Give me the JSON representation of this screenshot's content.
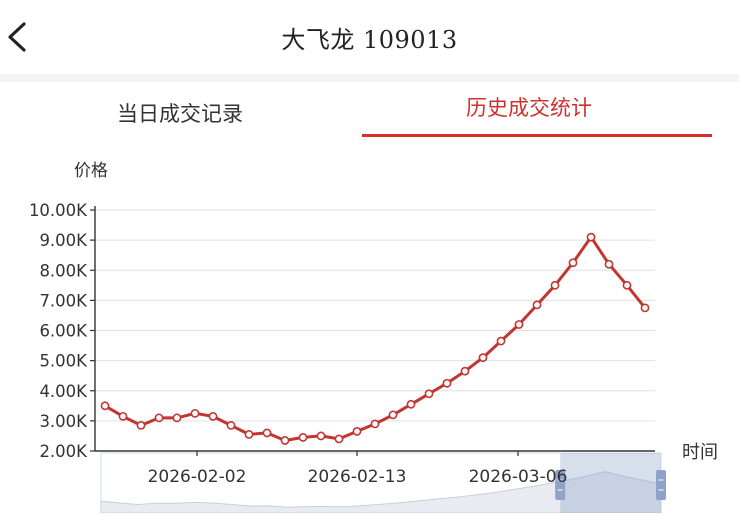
{
  "header": {
    "title_name": "大飞龙",
    "title_code": "109013"
  },
  "tabs": [
    {
      "label": "当日成交记录",
      "active": false
    },
    {
      "label": "历史成交统计",
      "active": true
    }
  ],
  "colors": {
    "accent": "#d0312d",
    "line": "#c23531",
    "grid": "#e0e0e0"
  },
  "chart_data": {
    "type": "line",
    "ylabel": "价格",
    "xlabel": "时间",
    "ylim": [
      2000,
      10000
    ],
    "y_ticks": [
      "2.00K",
      "3.00K",
      "4.00K",
      "5.00K",
      "6.00K",
      "7.00K",
      "8.00K",
      "9.00K",
      "10.00K"
    ],
    "x_ticks": [
      "2026-02-02",
      "2026-02-13",
      "2026-03-06"
    ],
    "legend": "none",
    "grid": true,
    "series": [
      {
        "values": [
          3500,
          3150,
          2850,
          3100,
          3100,
          3250,
          3150,
          2850,
          2550,
          2600,
          2350,
          2450,
          2500,
          2400,
          2650,
          2900,
          3200,
          3550,
          3900,
          4250,
          4650,
          5100,
          5650,
          6200,
          6850,
          7500,
          8250,
          9100,
          8200,
          7500,
          6750
        ]
      }
    ],
    "data_zoom": {
      "range_start_pct": 82,
      "range_end_pct": 100
    }
  }
}
